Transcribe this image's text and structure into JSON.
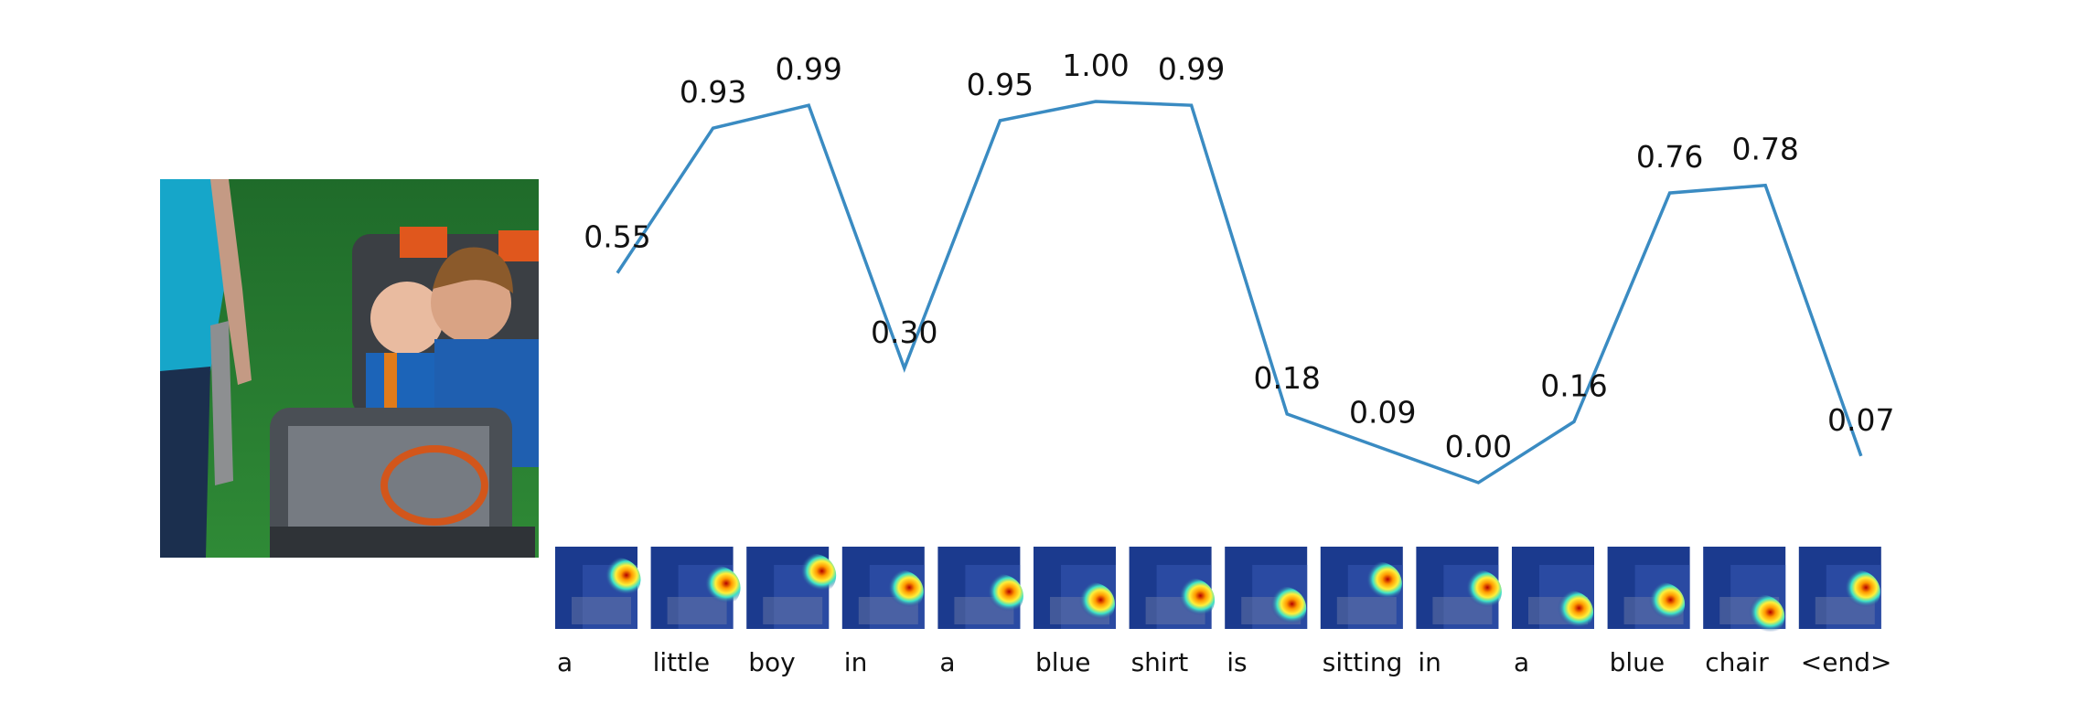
{
  "chart_data": {
    "type": "line",
    "categories": [
      "a",
      "little",
      "boy",
      "in",
      "a",
      "blue",
      "shirt",
      "is",
      "sitting",
      "in",
      "a",
      "blue",
      "chair",
      "<end>"
    ],
    "values": [
      0.55,
      0.93,
      0.99,
      0.3,
      0.95,
      1.0,
      0.99,
      0.18,
      0.09,
      0.0,
      0.16,
      0.76,
      0.78,
      0.07
    ],
    "value_labels": [
      "0.55",
      "0.93",
      "0.99",
      "0.30",
      "0.95",
      "1.00",
      "0.99",
      "0.18",
      "0.09",
      "0.00",
      "0.16",
      "0.76",
      "0.78",
      "0.07"
    ],
    "line_color": "#3a8bc2",
    "ylim": [
      0,
      1
    ],
    "grid": false,
    "axes_visible": false,
    "title": "",
    "xlabel": "",
    "ylabel": "",
    "attention_maps": "per-word attention heatmap thumbnail (jet colormap over image)"
  },
  "photo": {
    "subject": "two children in a blue toy car on grass",
    "colors": {
      "grass": "#2e7d32",
      "shirt": "#1c64b8",
      "car": "#4a4f55",
      "orange": "#e0571d"
    }
  }
}
